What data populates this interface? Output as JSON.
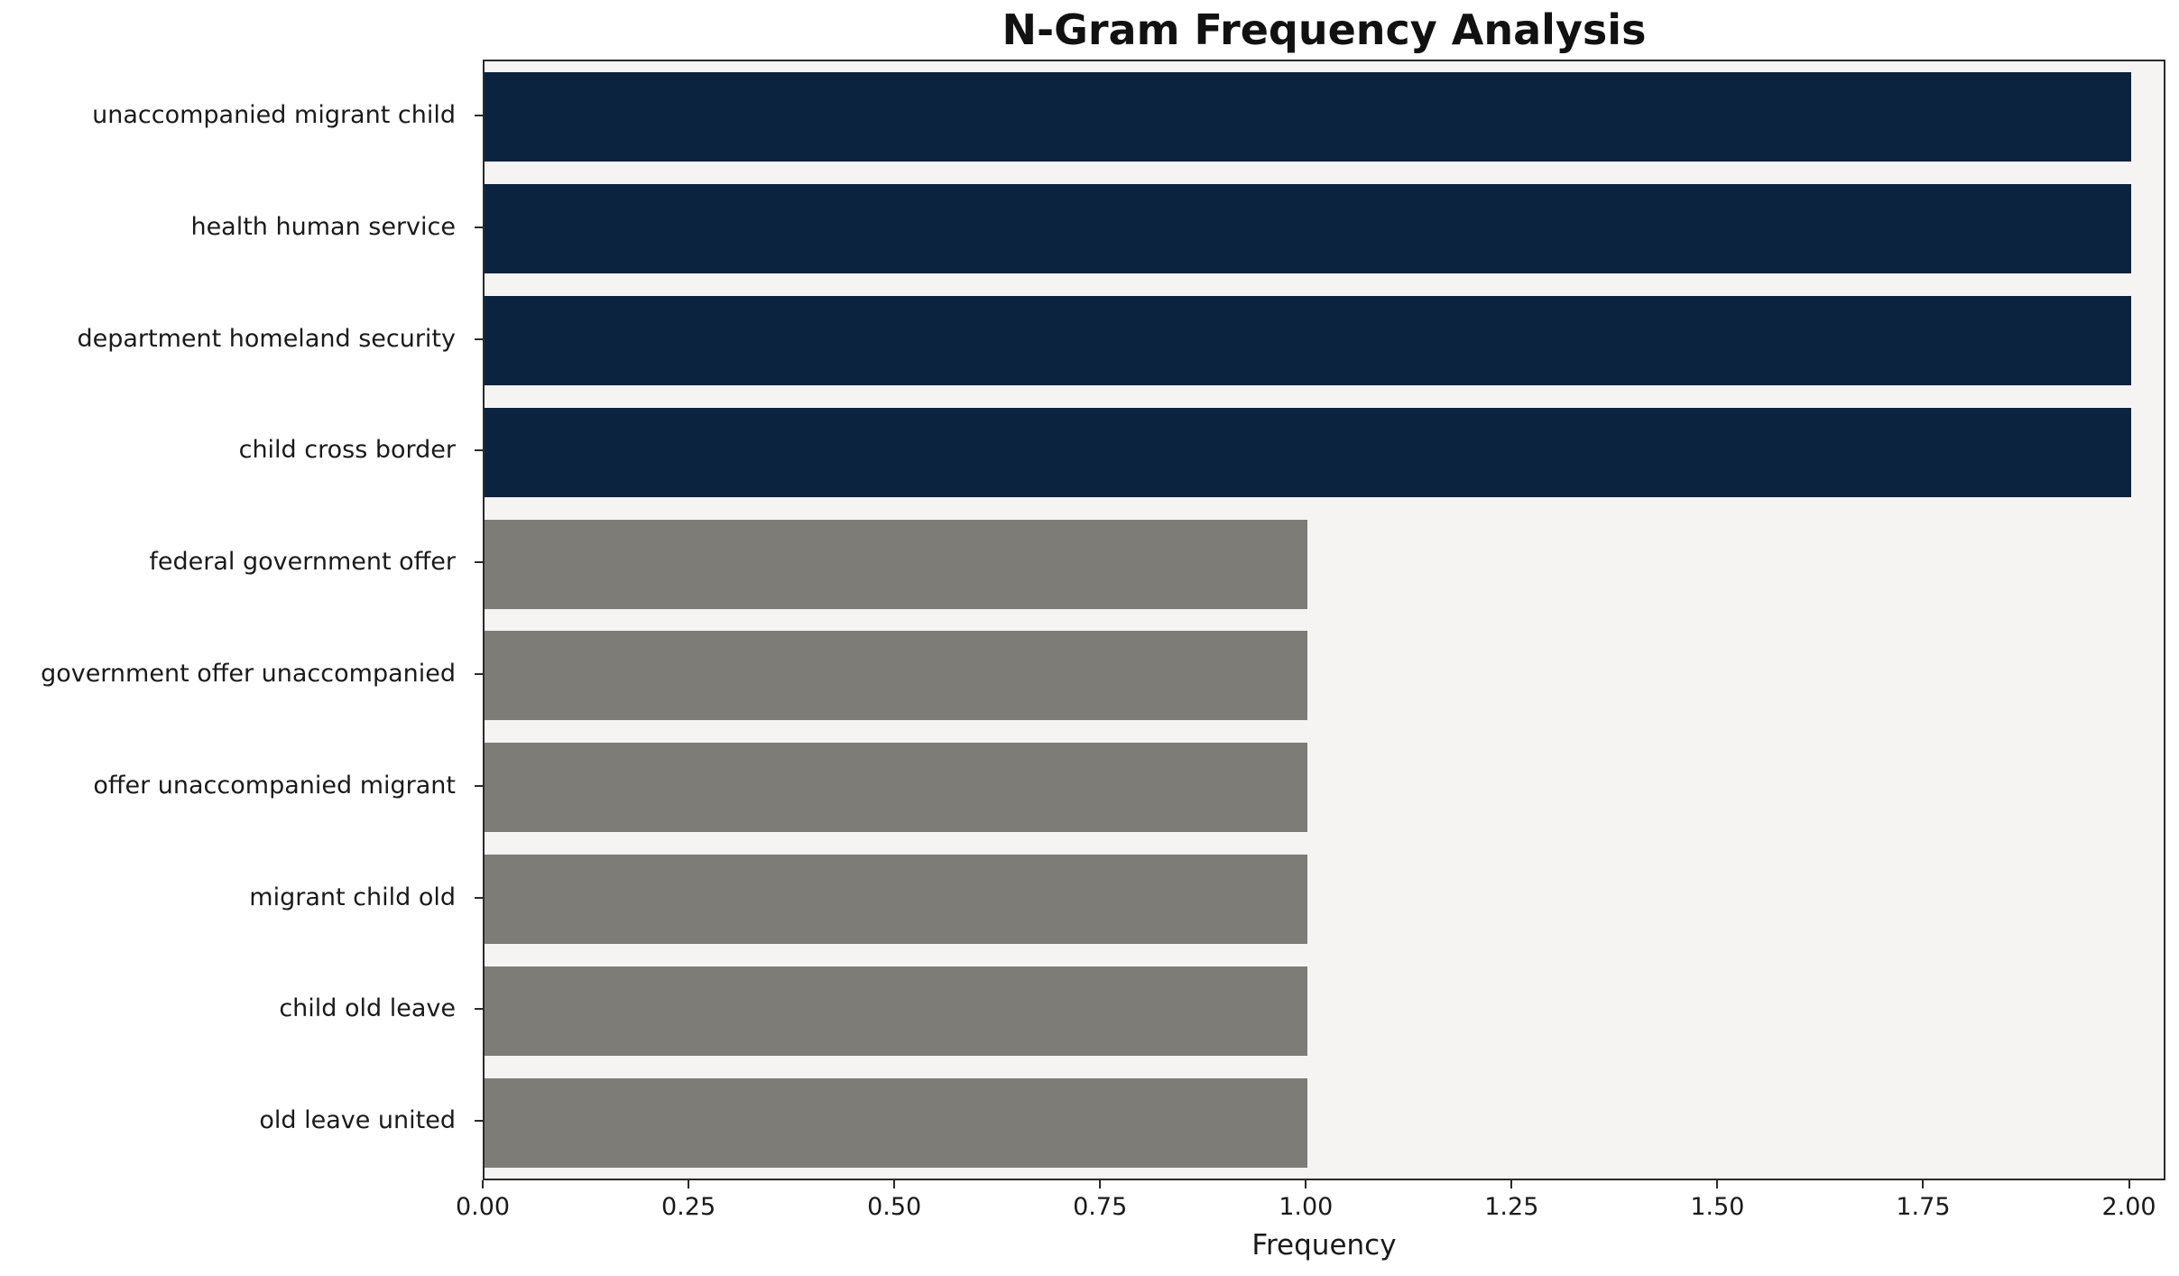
{
  "chart_data": {
    "type": "bar",
    "orientation": "horizontal",
    "title": "N-Gram Frequency Analysis",
    "xlabel": "Frequency",
    "ylabel": "",
    "categories": [
      "unaccompanied migrant child",
      "health human service",
      "department homeland security",
      "child cross border",
      "federal government offer",
      "government offer unaccompanied",
      "offer unaccompanied migrant",
      "migrant child old",
      "child old leave",
      "old leave united"
    ],
    "values": [
      2,
      2,
      2,
      2,
      1,
      1,
      1,
      1,
      1,
      1
    ],
    "bar_colors": [
      "#0c2340",
      "#0c2340",
      "#0c2340",
      "#0c2340",
      "#7d7c77",
      "#7d7c77",
      "#7d7c77",
      "#7d7c77",
      "#7d7c77",
      "#7d7c77"
    ],
    "colors": {
      "navy": "#0c2340",
      "gray": "#7d7c77",
      "plot_background": "#f5f4f2",
      "figure_background": "#ffffff",
      "spine": "#2a2a2a"
    },
    "xlim": [
      0,
      2.04
    ],
    "xticks": [
      "0.00",
      "0.25",
      "0.50",
      "0.75",
      "1.00",
      "1.25",
      "1.50",
      "1.75",
      "2.00"
    ],
    "grid": false,
    "legend": "none",
    "bar_fraction": 0.8
  }
}
